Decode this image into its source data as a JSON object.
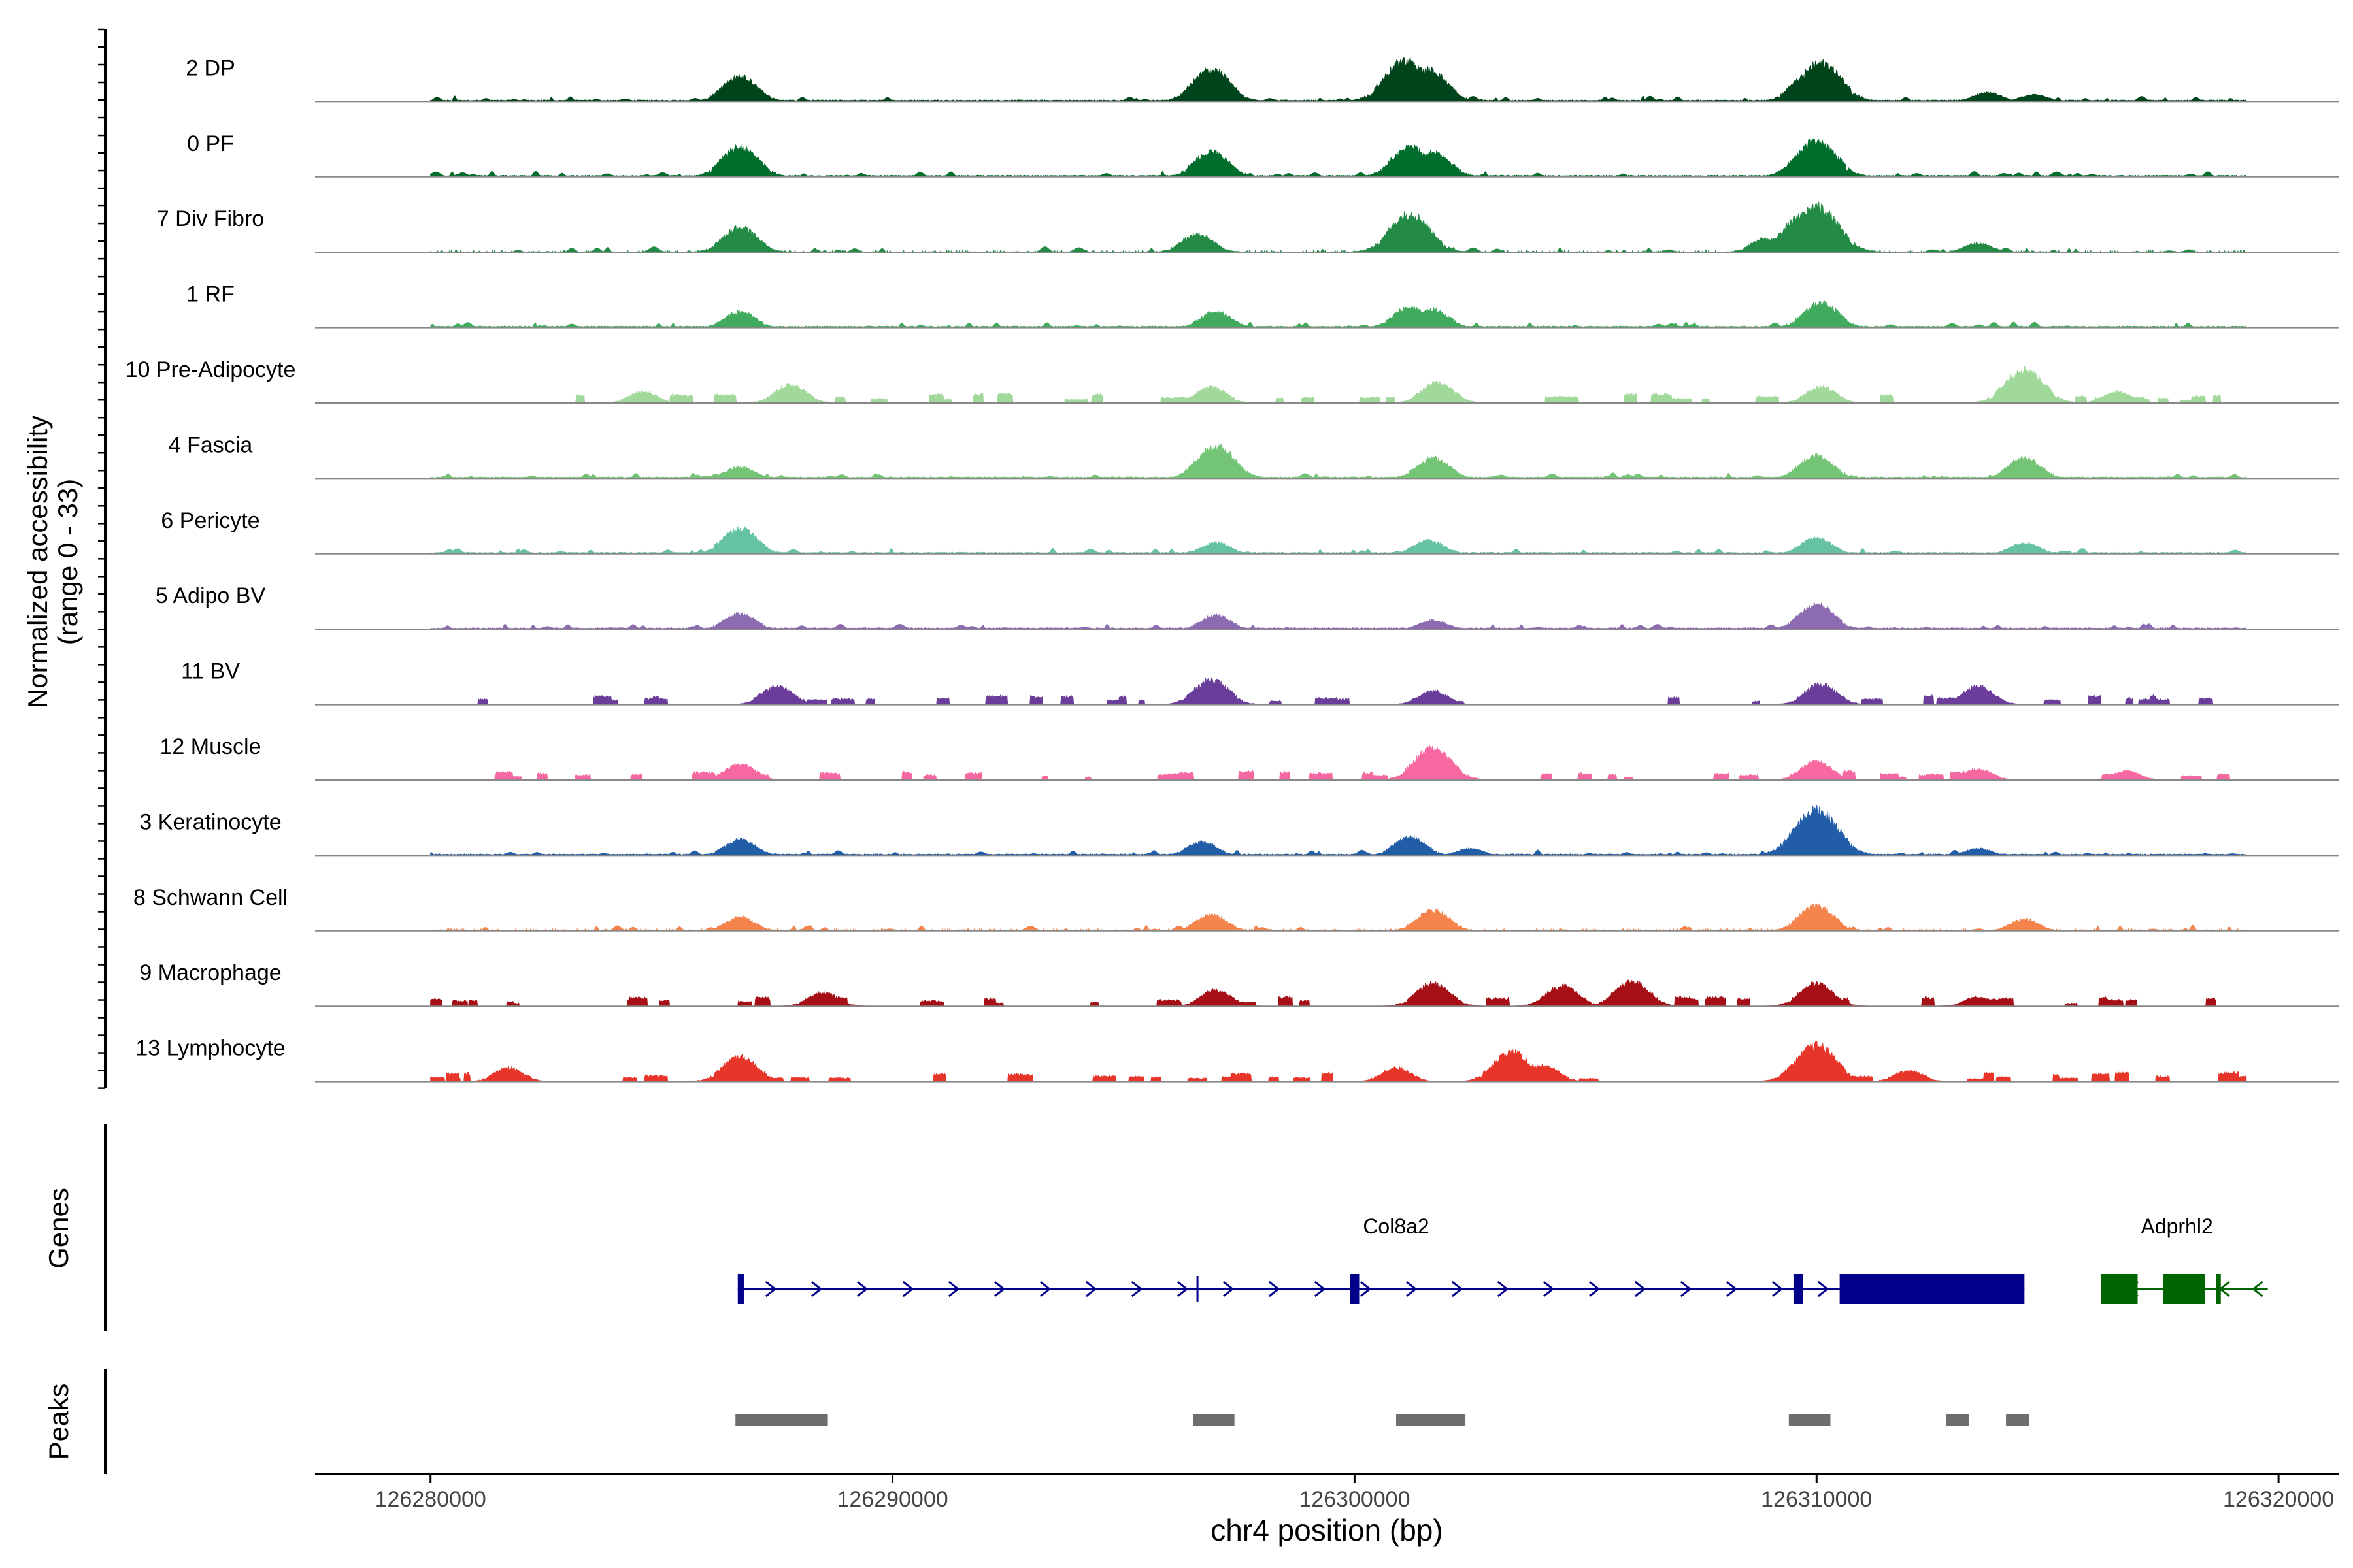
{
  "chart_data": {
    "type": "area",
    "title": "",
    "ylabel_line1": "Normalized accessibility",
    "ylabel_line2": "(range 0 - 33)",
    "y_range": [
      0,
      33
    ],
    "xlabel": "chr4 position (bp)",
    "xlim": [
      126277500,
      126321300
    ],
    "xticks": [
      126280000,
      126290000,
      126300000,
      126310000,
      126320000
    ],
    "xtick_labels": [
      "126280000",
      "126290000",
      "126300000",
      "126310000",
      "126320000"
    ],
    "genes_label": "Genes",
    "peaks_label": "Peaks",
    "track_range": [
      126280000,
      126319300
    ],
    "tracks": [
      {
        "name": "2 DP",
        "color": "#00441b",
        "density": "dense",
        "peaks": [
          [
            126286700,
            0.55
          ],
          [
            126296900,
            0.7
          ],
          [
            126301100,
            0.9
          ],
          [
            126301600,
            0.7
          ],
          [
            126309800,
            0.55
          ],
          [
            126310100,
            0.85
          ],
          [
            126313700,
            0.2
          ],
          [
            126314700,
            0.15
          ]
        ]
      },
      {
        "name": "0 PF",
        "color": "#006d2c",
        "density": "dense",
        "peaks": [
          [
            126286700,
            0.65
          ],
          [
            126296900,
            0.55
          ],
          [
            126301200,
            0.65
          ],
          [
            126301700,
            0.55
          ],
          [
            126310000,
            0.8
          ],
          [
            126309600,
            0.3
          ]
        ]
      },
      {
        "name": "7 Div Fibro",
        "color": "#238b45",
        "density": "medium",
        "peaks": [
          [
            126286700,
            0.55
          ],
          [
            126296600,
            0.4
          ],
          [
            126301200,
            0.85
          ],
          [
            126309700,
            0.8
          ],
          [
            126310000,
            1.0
          ],
          [
            126308900,
            0.3
          ],
          [
            126313500,
            0.2
          ]
        ]
      },
      {
        "name": "1 RF",
        "color": "#41ab5d",
        "density": "dense",
        "peaks": [
          [
            126286700,
            0.35
          ],
          [
            126297000,
            0.35
          ],
          [
            126301200,
            0.45
          ],
          [
            126301700,
            0.4
          ],
          [
            126310100,
            0.55
          ]
        ]
      },
      {
        "name": "10 Pre-Adipocyte",
        "color": "#a1d99b",
        "density": "sparse",
        "peaks": [
          [
            126284600,
            0.25
          ],
          [
            126287800,
            0.4
          ],
          [
            126296900,
            0.35
          ],
          [
            126301800,
            0.45
          ],
          [
            126310100,
            0.35
          ],
          [
            126314500,
            0.75
          ],
          [
            126316500,
            0.25
          ]
        ]
      },
      {
        "name": "4 Fascia",
        "color": "#74c476",
        "density": "dense",
        "peaks": [
          [
            126286700,
            0.25
          ],
          [
            126297000,
            0.7
          ],
          [
            126301700,
            0.45
          ],
          [
            126310000,
            0.5
          ],
          [
            126314500,
            0.45
          ]
        ]
      },
      {
        "name": "6 Pericyte",
        "color": "#66c2a4",
        "density": "dense",
        "peaks": [
          [
            126286700,
            0.55
          ],
          [
            126297000,
            0.25
          ],
          [
            126301600,
            0.3
          ],
          [
            126310000,
            0.35
          ],
          [
            126314500,
            0.25
          ]
        ]
      },
      {
        "name": "5 Adipo BV",
        "color": "#8c6bb1",
        "density": "dense",
        "peaks": [
          [
            126286700,
            0.35
          ],
          [
            126297000,
            0.3
          ],
          [
            126301700,
            0.2
          ],
          [
            126310000,
            0.55
          ]
        ]
      },
      {
        "name": "11 BV",
        "color": "#6a3d9a",
        "density": "sparse",
        "peaks": [
          [
            126287500,
            0.4
          ],
          [
            126296900,
            0.55
          ],
          [
            126301700,
            0.3
          ],
          [
            126310100,
            0.45
          ],
          [
            126313500,
            0.4
          ]
        ]
      },
      {
        "name": "12 Muscle",
        "color": "#f768a1",
        "density": "sparse",
        "peaks": [
          [
            126286700,
            0.35
          ],
          [
            126301700,
            0.7
          ],
          [
            126310000,
            0.4
          ],
          [
            126313500,
            0.25
          ],
          [
            126316700,
            0.2
          ]
        ]
      },
      {
        "name": "3 Keratinocyte",
        "color": "#225ea8",
        "density": "dense",
        "peaks": [
          [
            126286700,
            0.35
          ],
          [
            126296700,
            0.3
          ],
          [
            126301200,
            0.4
          ],
          [
            126302500,
            0.15
          ],
          [
            126310000,
            1.0
          ],
          [
            126313500,
            0.15
          ]
        ]
      },
      {
        "name": "8 Schwann Cell",
        "color": "#f4844c",
        "density": "medium",
        "peaks": [
          [
            126286700,
            0.3
          ],
          [
            126296900,
            0.35
          ],
          [
            126301700,
            0.45
          ],
          [
            126310000,
            0.55
          ],
          [
            126314500,
            0.25
          ]
        ]
      },
      {
        "name": "9 Macrophage",
        "color": "#a50f15",
        "density": "sparse",
        "peaks": [
          [
            126288500,
            0.3
          ],
          [
            126297000,
            0.35
          ],
          [
            126301700,
            0.5
          ],
          [
            126304500,
            0.45
          ],
          [
            126306000,
            0.55
          ],
          [
            126310000,
            0.5
          ],
          [
            126313500,
            0.2
          ]
        ]
      },
      {
        "name": "13 Lymphocyte",
        "color": "#e8352a",
        "density": "sparse",
        "peaks": [
          [
            126281700,
            0.3
          ],
          [
            126286700,
            0.55
          ],
          [
            126303400,
            0.65
          ],
          [
            126310000,
            0.8
          ],
          [
            126309800,
            0.55
          ],
          [
            126304100,
            0.35
          ],
          [
            126300900,
            0.3
          ],
          [
            126312000,
            0.25
          ]
        ]
      }
    ],
    "genes": [
      {
        "name": "Col8a2",
        "strand": "+",
        "color": "#00008b",
        "start": 126286650,
        "end": 126314500,
        "exons": [
          [
            126286650,
            126286780
          ],
          [
            126299900,
            126300100
          ],
          [
            126309500,
            126309700
          ],
          [
            126310500,
            126314500
          ]
        ],
        "small_ticks": [
          126296600
        ]
      },
      {
        "name": "Adprhl2",
        "strand": "-",
        "color": "#006400",
        "start": 126316150,
        "end": 126319300,
        "exons": [
          [
            126316150,
            126316950
          ],
          [
            126317500,
            126318400
          ],
          [
            126318650,
            126318750
          ]
        ],
        "small_ticks": []
      }
    ],
    "peak_regions": [
      [
        126286600,
        126288600
      ],
      [
        126296500,
        126297400
      ],
      [
        126300900,
        126302400
      ],
      [
        126309400,
        126310300
      ],
      [
        126312800,
        126313300
      ],
      [
        126314100,
        126314600
      ]
    ]
  }
}
